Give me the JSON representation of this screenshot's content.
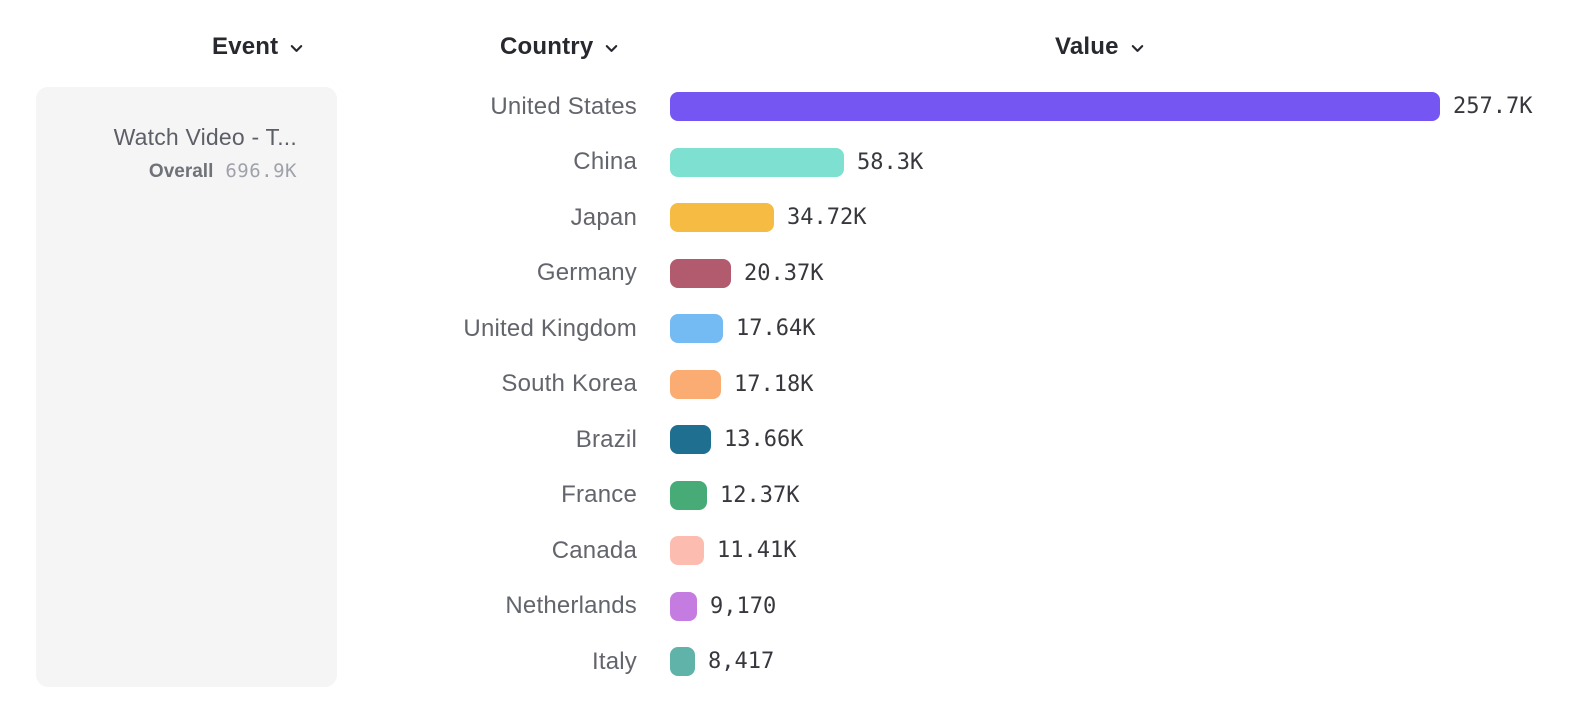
{
  "header": {
    "event_label": "Event",
    "country_label": "Country",
    "value_label": "Value"
  },
  "event_card": {
    "title": "Watch Video - T...",
    "metric_label": "Overall",
    "metric_value": "696.9K"
  },
  "chart_data": {
    "type": "bar",
    "orientation": "horizontal",
    "group_by": "Country",
    "metric": "Value",
    "categories": [
      "United States",
      "China",
      "Japan",
      "Germany",
      "United Kingdom",
      "South Korea",
      "Brazil",
      "France",
      "Canada",
      "Netherlands",
      "Italy"
    ],
    "values": [
      257700,
      58300,
      34720,
      20370,
      17640,
      17180,
      13660,
      12370,
      11410,
      9170,
      8417
    ],
    "value_labels": [
      "257.7K",
      "58.3K",
      "34.72K",
      "20.37K",
      "17.64K",
      "17.18K",
      "13.66K",
      "12.37K",
      "11.41K",
      "9,170",
      "8,417"
    ],
    "bar_colors": [
      "#7556F2",
      "#7DE0D1",
      "#F6BB42",
      "#B25B6F",
      "#74BBF3",
      "#FBAC72",
      "#1E6F90",
      "#47AB78",
      "#FCBDB0",
      "#C47CE0",
      "#5FB3A8"
    ],
    "xlim": [
      0,
      257700
    ],
    "grid": false,
    "legend": false,
    "accent_color": "#7556F2",
    "chevron_color": "#28292e"
  }
}
